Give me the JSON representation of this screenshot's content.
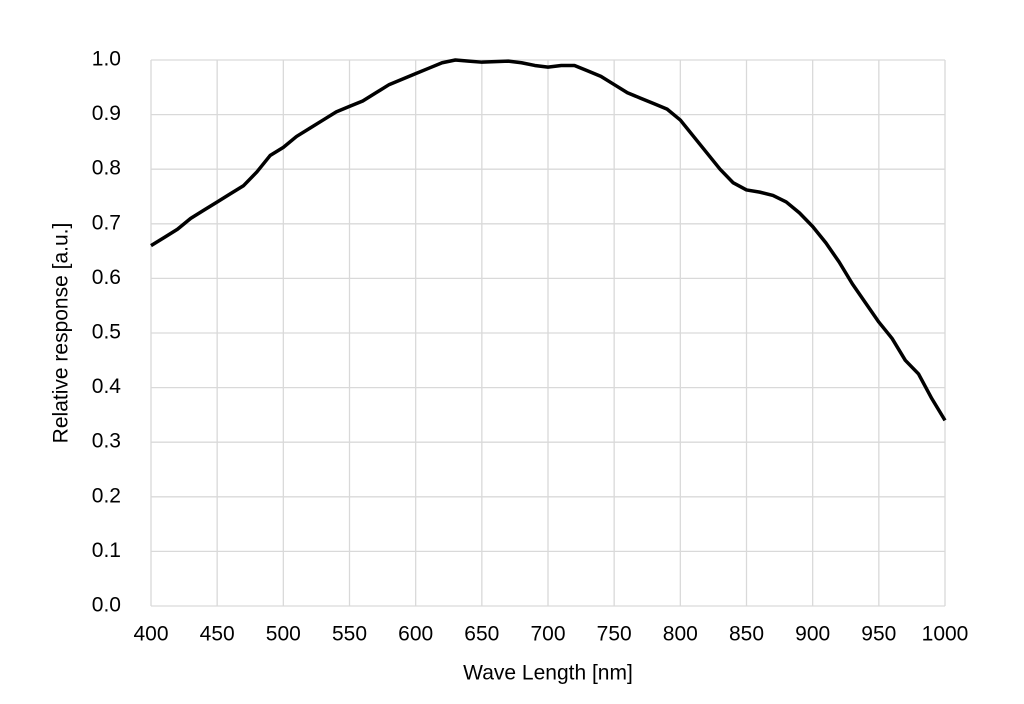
{
  "chart_data": {
    "type": "line",
    "x_label": "Wave Length [nm]",
    "y_label": "Relative response [a.u.]",
    "x": [
      400,
      410,
      420,
      430,
      440,
      450,
      460,
      470,
      480,
      490,
      500,
      510,
      520,
      530,
      540,
      550,
      560,
      570,
      580,
      590,
      600,
      610,
      620,
      630,
      640,
      650,
      660,
      670,
      680,
      690,
      700,
      710,
      720,
      730,
      740,
      750,
      760,
      770,
      780,
      790,
      800,
      810,
      820,
      830,
      840,
      850,
      860,
      870,
      880,
      890,
      900,
      910,
      920,
      930,
      940,
      950,
      960,
      970,
      980,
      990,
      1000
    ],
    "series": [
      {
        "color": "#000000",
        "values": [
          0.66,
          0.675,
          0.69,
          0.71,
          0.725,
          0.74,
          0.755,
          0.77,
          0.795,
          0.825,
          0.84,
          0.86,
          0.875,
          0.89,
          0.905,
          0.915,
          0.925,
          0.94,
          0.955,
          0.965,
          0.975,
          0.985,
          0.995,
          1.0,
          0.998,
          0.996,
          0.997,
          0.998,
          0.995,
          0.99,
          0.987,
          0.99,
          0.99,
          0.98,
          0.97,
          0.955,
          0.94,
          0.93,
          0.92,
          0.91,
          0.89,
          0.86,
          0.83,
          0.8,
          0.775,
          0.762,
          0.758,
          0.752,
          0.74,
          0.72,
          0.695,
          0.665,
          0.63,
          0.59,
          0.555,
          0.52,
          0.49,
          0.45,
          0.425,
          0.38,
          0.34
        ]
      }
    ],
    "xlim": [
      400,
      1000
    ],
    "xticks": [
      400,
      450,
      500,
      550,
      600,
      650,
      700,
      750,
      800,
      850,
      900,
      950,
      1000
    ],
    "ylim": [
      0,
      1
    ],
    "yticks": [
      {
        "value": 0,
        "label": "0.0"
      },
      0.1,
      0.2,
      0.3,
      0.4,
      0.5,
      0.6,
      0.7,
      0.8,
      0.9,
      {
        "value": 1,
        "label": "1.0"
      }
    ],
    "grid": true
  }
}
